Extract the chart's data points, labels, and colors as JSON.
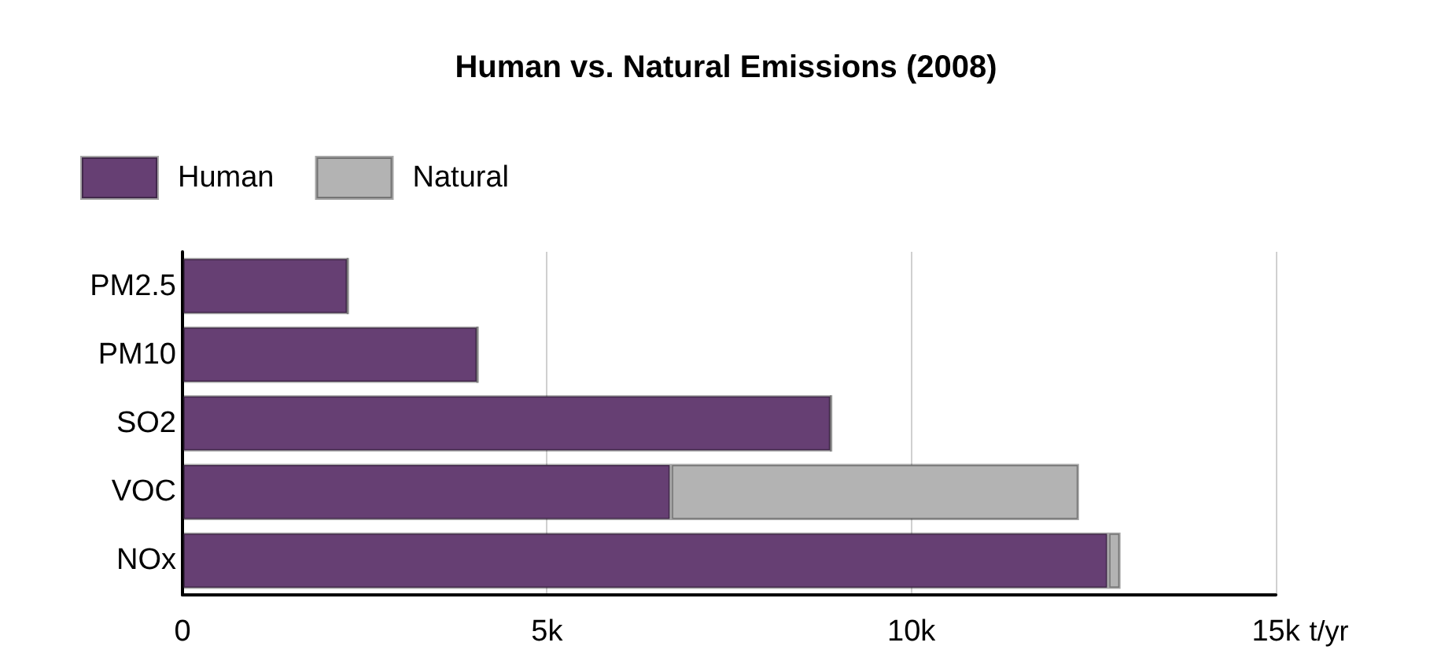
{
  "chart_data": {
    "type": "bar",
    "orientation": "horizontal",
    "stacked": true,
    "title": "Human vs. Natural Emissions (2008)",
    "xlabel": "t/yr",
    "categories": [
      "PM2.5",
      "PM10",
      "SO2",
      "VOC",
      "NOx"
    ],
    "series": [
      {
        "name": "Human",
        "color": "#663f73",
        "values": [
          2.27,
          4.05,
          8.9,
          6.7,
          12.7
        ]
      },
      {
        "name": "Natural",
        "color": "#b3b3b3",
        "values": [
          0,
          0,
          0,
          5.6,
          0.17
        ]
      }
    ],
    "xlim": [
      0,
      15
    ],
    "xticks": [
      {
        "value": 0,
        "label": "0"
      },
      {
        "value": 5,
        "label": "5k"
      },
      {
        "value": 10,
        "label": "10k"
      },
      {
        "value": 15,
        "label": "15k"
      }
    ],
    "grid": "x",
    "legend": "top left"
  }
}
